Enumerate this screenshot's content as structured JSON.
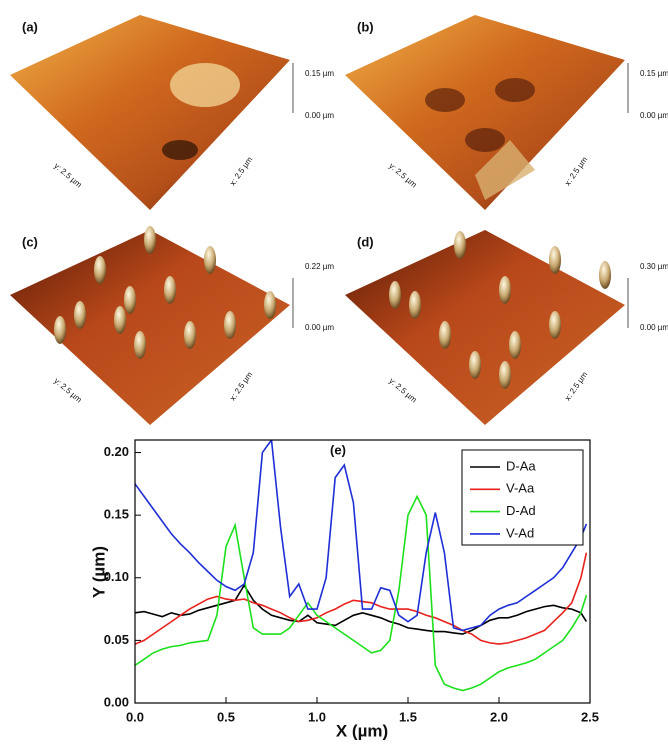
{
  "panels": [
    {
      "label": "(a)",
      "z_top": "0.15 µm",
      "z_bottom": "0.00 µm",
      "y_axis": "y: 2.5 µm",
      "x_axis": "x: 2.5 µm"
    },
    {
      "label": "(b)",
      "z_top": "0.15 µm",
      "z_bottom": "0.00 µm",
      "y_axis": "y: 2.5 µm",
      "x_axis": "x: 2.5 µm"
    },
    {
      "label": "(c)",
      "z_top": "0.22 µm",
      "z_bottom": "0.00 µm",
      "y_axis": "y: 2.5 µm",
      "x_axis": "x: 2.5 µm"
    },
    {
      "label": "(d)",
      "z_top": "0.30 µm",
      "z_bottom": "0.00 µm",
      "y_axis": "y: 2.5 µm",
      "x_axis": "x: 2.5 µm"
    }
  ],
  "chart_data": {
    "type": "line",
    "annotation": "(e)",
    "x_label": "X (µm)",
    "y_label": "Y (µm)",
    "x": [
      0,
      0.05,
      0.1,
      0.15,
      0.2,
      0.25,
      0.3,
      0.35,
      0.4,
      0.45,
      0.5,
      0.55,
      0.6,
      0.65,
      0.7,
      0.75,
      0.8,
      0.85,
      0.9,
      0.95,
      1.0,
      1.05,
      1.1,
      1.15,
      1.2,
      1.25,
      1.3,
      1.35,
      1.4,
      1.45,
      1.5,
      1.55,
      1.6,
      1.65,
      1.7,
      1.75,
      1.8,
      1.85,
      1.9,
      1.95,
      2.0,
      2.05,
      2.1,
      2.15,
      2.2,
      2.25,
      2.3,
      2.35,
      2.4,
      2.45,
      2.48
    ],
    "series": [
      {
        "name": "D-Aa",
        "color": "#000000",
        "values": [
          0.072,
          0.073,
          0.071,
          0.069,
          0.072,
          0.07,
          0.071,
          0.074,
          0.076,
          0.078,
          0.08,
          0.082,
          0.094,
          0.082,
          0.075,
          0.07,
          0.068,
          0.066,
          0.065,
          0.07,
          0.064,
          0.063,
          0.062,
          0.066,
          0.07,
          0.072,
          0.07,
          0.068,
          0.065,
          0.063,
          0.06,
          0.059,
          0.058,
          0.057,
          0.057,
          0.056,
          0.055,
          0.058,
          0.062,
          0.066,
          0.068,
          0.068,
          0.07,
          0.073,
          0.075,
          0.077,
          0.078,
          0.076,
          0.075,
          0.072,
          0.065
        ]
      },
      {
        "name": "V-Aa",
        "color": "#e8221c",
        "values": [
          0.047,
          0.05,
          0.055,
          0.06,
          0.065,
          0.07,
          0.075,
          0.079,
          0.083,
          0.085,
          0.083,
          0.082,
          0.083,
          0.08,
          0.078,
          0.075,
          0.072,
          0.068,
          0.065,
          0.066,
          0.068,
          0.072,
          0.075,
          0.079,
          0.082,
          0.081,
          0.08,
          0.077,
          0.075,
          0.075,
          0.075,
          0.073,
          0.07,
          0.068,
          0.065,
          0.062,
          0.058,
          0.055,
          0.05,
          0.048,
          0.047,
          0.048,
          0.05,
          0.052,
          0.055,
          0.058,
          0.065,
          0.072,
          0.08,
          0.1,
          0.12
        ]
      },
      {
        "name": "D-Ad",
        "color": "#1de01d",
        "values": [
          0.03,
          0.035,
          0.04,
          0.043,
          0.045,
          0.046,
          0.048,
          0.049,
          0.05,
          0.07,
          0.125,
          0.142,
          0.1,
          0.06,
          0.055,
          0.055,
          0.055,
          0.06,
          0.07,
          0.08,
          0.07,
          0.065,
          0.06,
          0.055,
          0.05,
          0.045,
          0.04,
          0.042,
          0.05,
          0.09,
          0.15,
          0.165,
          0.15,
          0.03,
          0.015,
          0.012,
          0.01,
          0.012,
          0.015,
          0.02,
          0.025,
          0.028,
          0.03,
          0.032,
          0.035,
          0.04,
          0.045,
          0.05,
          0.06,
          0.072,
          0.086
        ]
      },
      {
        "name": "V-Ad",
        "color": "#1f2fd6",
        "values": [
          0.175,
          0.165,
          0.155,
          0.145,
          0.135,
          0.127,
          0.12,
          0.112,
          0.105,
          0.098,
          0.093,
          0.09,
          0.095,
          0.12,
          0.2,
          0.21,
          0.14,
          0.085,
          0.095,
          0.075,
          0.075,
          0.1,
          0.18,
          0.19,
          0.16,
          0.075,
          0.075,
          0.092,
          0.09,
          0.07,
          0.065,
          0.07,
          0.12,
          0.152,
          0.12,
          0.06,
          0.058,
          0.06,
          0.062,
          0.07,
          0.075,
          0.078,
          0.08,
          0.085,
          0.09,
          0.095,
          0.1,
          0.108,
          0.12,
          0.132,
          0.143
        ]
      }
    ],
    "xlim": [
      0,
      2.5
    ],
    "ylim": [
      0,
      0.21
    ],
    "xticks": [
      {
        "value": 0,
        "label": "0.0"
      },
      0.5,
      {
        "value": 1,
        "label": "1.0"
      },
      1.5,
      {
        "value": 2,
        "label": "2.0"
      },
      2.5
    ],
    "yticks": [
      {
        "value": 0,
        "label": "0.00"
      },
      0.05,
      {
        "value": 0.1,
        "label": "0.10"
      },
      0.15,
      {
        "value": 0.2,
        "label": "0.20"
      }
    ],
    "legend": "upper-right"
  }
}
